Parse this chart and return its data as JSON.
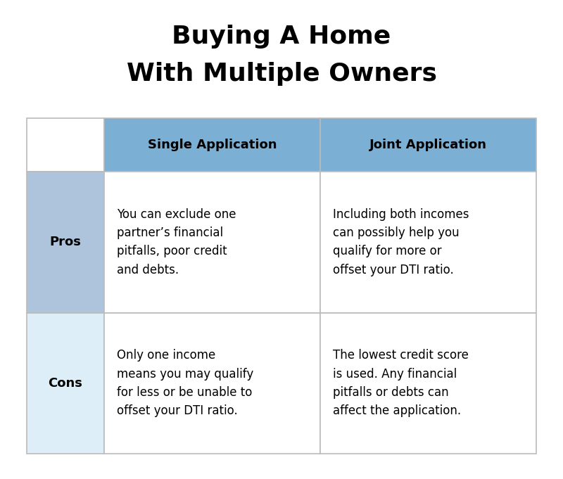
{
  "title_line1": "Buying A Home",
  "title_line2": "With Multiple Owners",
  "title_fontsize": 26,
  "title_fontweight": "bold",
  "background_color": "#ffffff",
  "table_border_color": "#bbbbbb",
  "header_bg_color": "#7bafd4",
  "pros_label_bg": "#adc4dc",
  "cons_label_bg": "#ddeef8",
  "header_text_color": "#000000",
  "header_fontsize": 13,
  "header_fontweight": "bold",
  "row_label_fontsize": 13,
  "row_label_fontweight": "bold",
  "cell_fontsize": 12,
  "col_headers": [
    "Single Application",
    "Joint Application"
  ],
  "row_labels": [
    "Pros",
    "Cons"
  ],
  "cell_texts": [
    [
      "You can exclude one\npartner’s financial\npitfalls, poor credit\nand debts.",
      "Including both incomes\ncan possibly help you\nqualify for more or\noffset your DTI ratio."
    ],
    [
      "Only one income\nmeans you may qualify\nfor less or be unable to\noffset your DTI ratio.",
      "The lowest credit score\nis used. Any financial\npitfalls or debts can\naffect the application."
    ]
  ],
  "fig_width": 8.0,
  "fig_height": 6.81,
  "dpi": 100
}
